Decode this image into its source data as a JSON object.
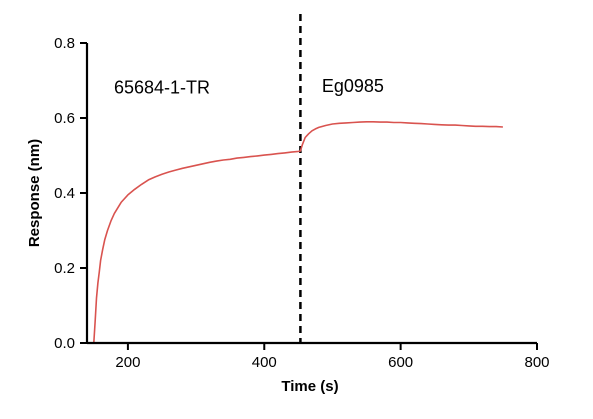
{
  "chart_data": {
    "type": "line",
    "xlabel": "Time (s)",
    "ylabel": "Response (nm)",
    "xlim": [
      140,
      800
    ],
    "ylim": [
      0,
      0.8
    ],
    "x_ticks": [
      200,
      400,
      600,
      800
    ],
    "y_ticks": [
      0.0,
      0.2,
      0.4,
      0.6,
      0.8
    ],
    "x_tick_labels": [
      "200",
      "400",
      "600",
      "800"
    ],
    "y_tick_labels": [
      "0.0",
      "0.2",
      "0.4",
      "0.6",
      "0.8"
    ],
    "grid": false,
    "annotations": [
      {
        "text": "65684-1-TR",
        "x": 250,
        "y": 0.665
      },
      {
        "text": "Eg0985",
        "x": 530,
        "y": 0.67
      }
    ],
    "divider": {
      "x": 453,
      "style": "dashed",
      "color": "#000000"
    },
    "series": [
      {
        "color": "#d9534f",
        "x": [
          150,
          152,
          154,
          156,
          158,
          160,
          163,
          166,
          170,
          175,
          180,
          190,
          200,
          210,
          220,
          230,
          240,
          250,
          260,
          270,
          280,
          290,
          300,
          310,
          320,
          330,
          340,
          350,
          360,
          370,
          380,
          390,
          400,
          410,
          420,
          430,
          440,
          450,
          453,
          456,
          460,
          465,
          470,
          475,
          480,
          490,
          500,
          510,
          520,
          530,
          540,
          550,
          560,
          570,
          580,
          590,
          600,
          610,
          620,
          630,
          640,
          650,
          660,
          670,
          680,
          690,
          700,
          710,
          720,
          730,
          740,
          750
        ],
        "y": [
          0.0,
          0.06,
          0.12,
          0.16,
          0.19,
          0.22,
          0.25,
          0.275,
          0.3,
          0.325,
          0.345,
          0.375,
          0.395,
          0.41,
          0.423,
          0.435,
          0.443,
          0.45,
          0.456,
          0.461,
          0.466,
          0.47,
          0.474,
          0.478,
          0.482,
          0.485,
          0.488,
          0.49,
          0.493,
          0.495,
          0.497,
          0.499,
          0.501,
          0.503,
          0.505,
          0.507,
          0.509,
          0.511,
          0.512,
          0.53,
          0.548,
          0.558,
          0.566,
          0.571,
          0.575,
          0.58,
          0.584,
          0.586,
          0.587,
          0.588,
          0.589,
          0.59,
          0.59,
          0.589,
          0.589,
          0.588,
          0.588,
          0.587,
          0.586,
          0.585,
          0.584,
          0.583,
          0.582,
          0.581,
          0.581,
          0.58,
          0.579,
          0.578,
          0.578,
          0.577,
          0.577,
          0.576
        ]
      }
    ]
  }
}
